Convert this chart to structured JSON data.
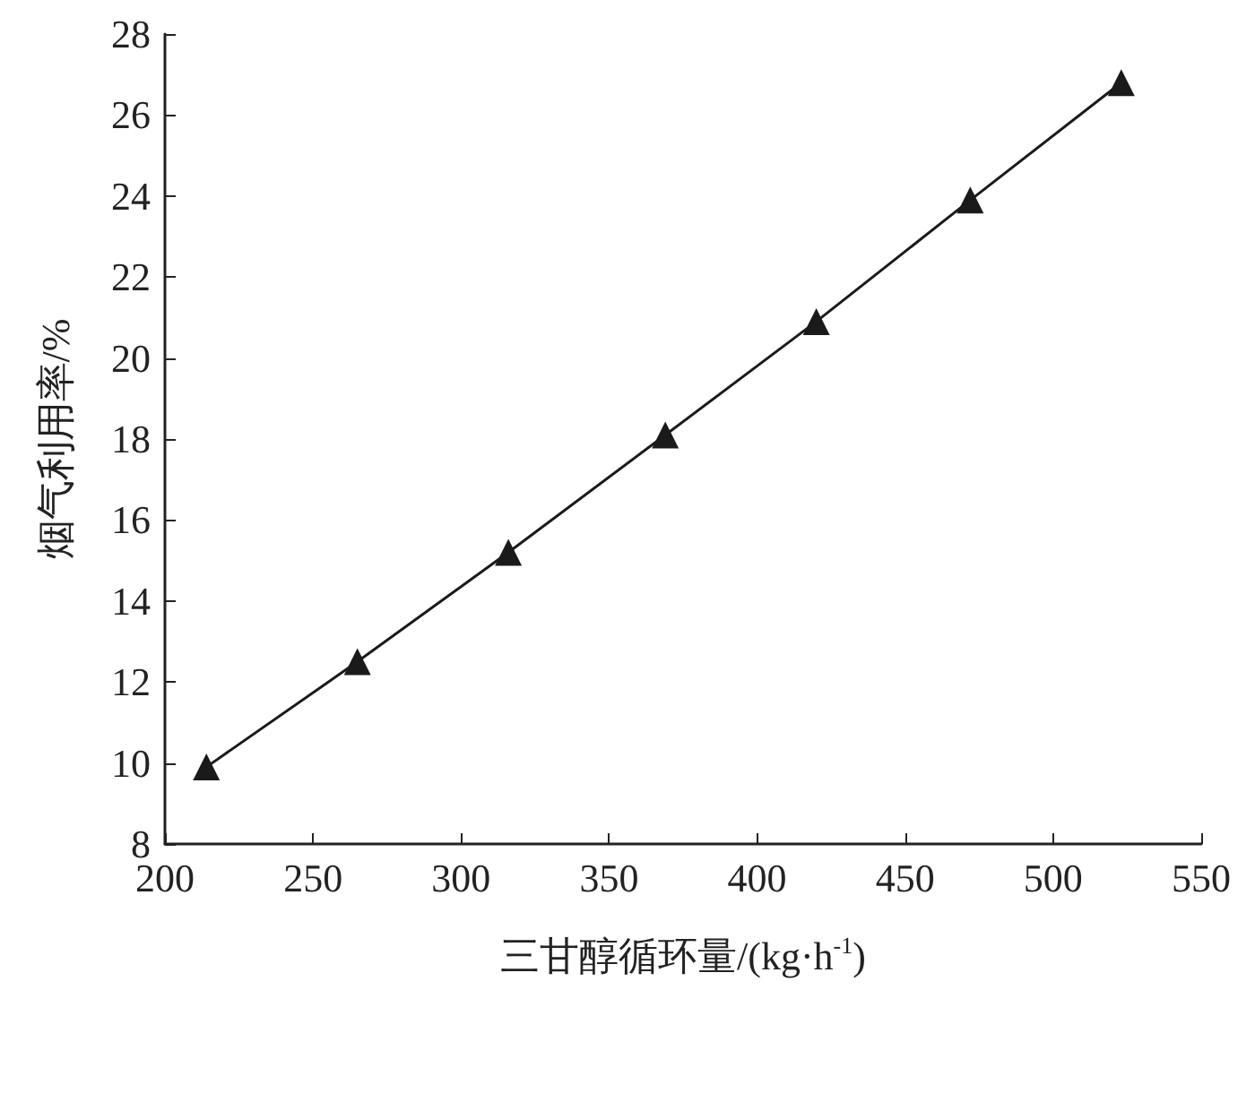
{
  "chart_data": {
    "type": "line",
    "xlabel": "三甘醇循环量/(kg·h$^{-1}$)",
    "ylabel": "烟气利用率/%",
    "x": [
      214,
      265,
      316,
      369,
      420,
      472,
      523
    ],
    "series": [
      {
        "color": "#1a1a1a",
        "values": [
          9.9,
          12.5,
          15.2,
          18.1,
          20.9,
          23.9,
          26.8
        ]
      }
    ],
    "xlim": [
      200,
      550
    ],
    "xticks": [
      200,
      250,
      300,
      350,
      400,
      450,
      500,
      550
    ],
    "ylim": [
      8,
      28
    ],
    "yticks": [
      8,
      10,
      12,
      14,
      16,
      18,
      20,
      22,
      24,
      26,
      28
    ],
    "marker": "triangle",
    "line_style": "solid",
    "grid": false
  }
}
